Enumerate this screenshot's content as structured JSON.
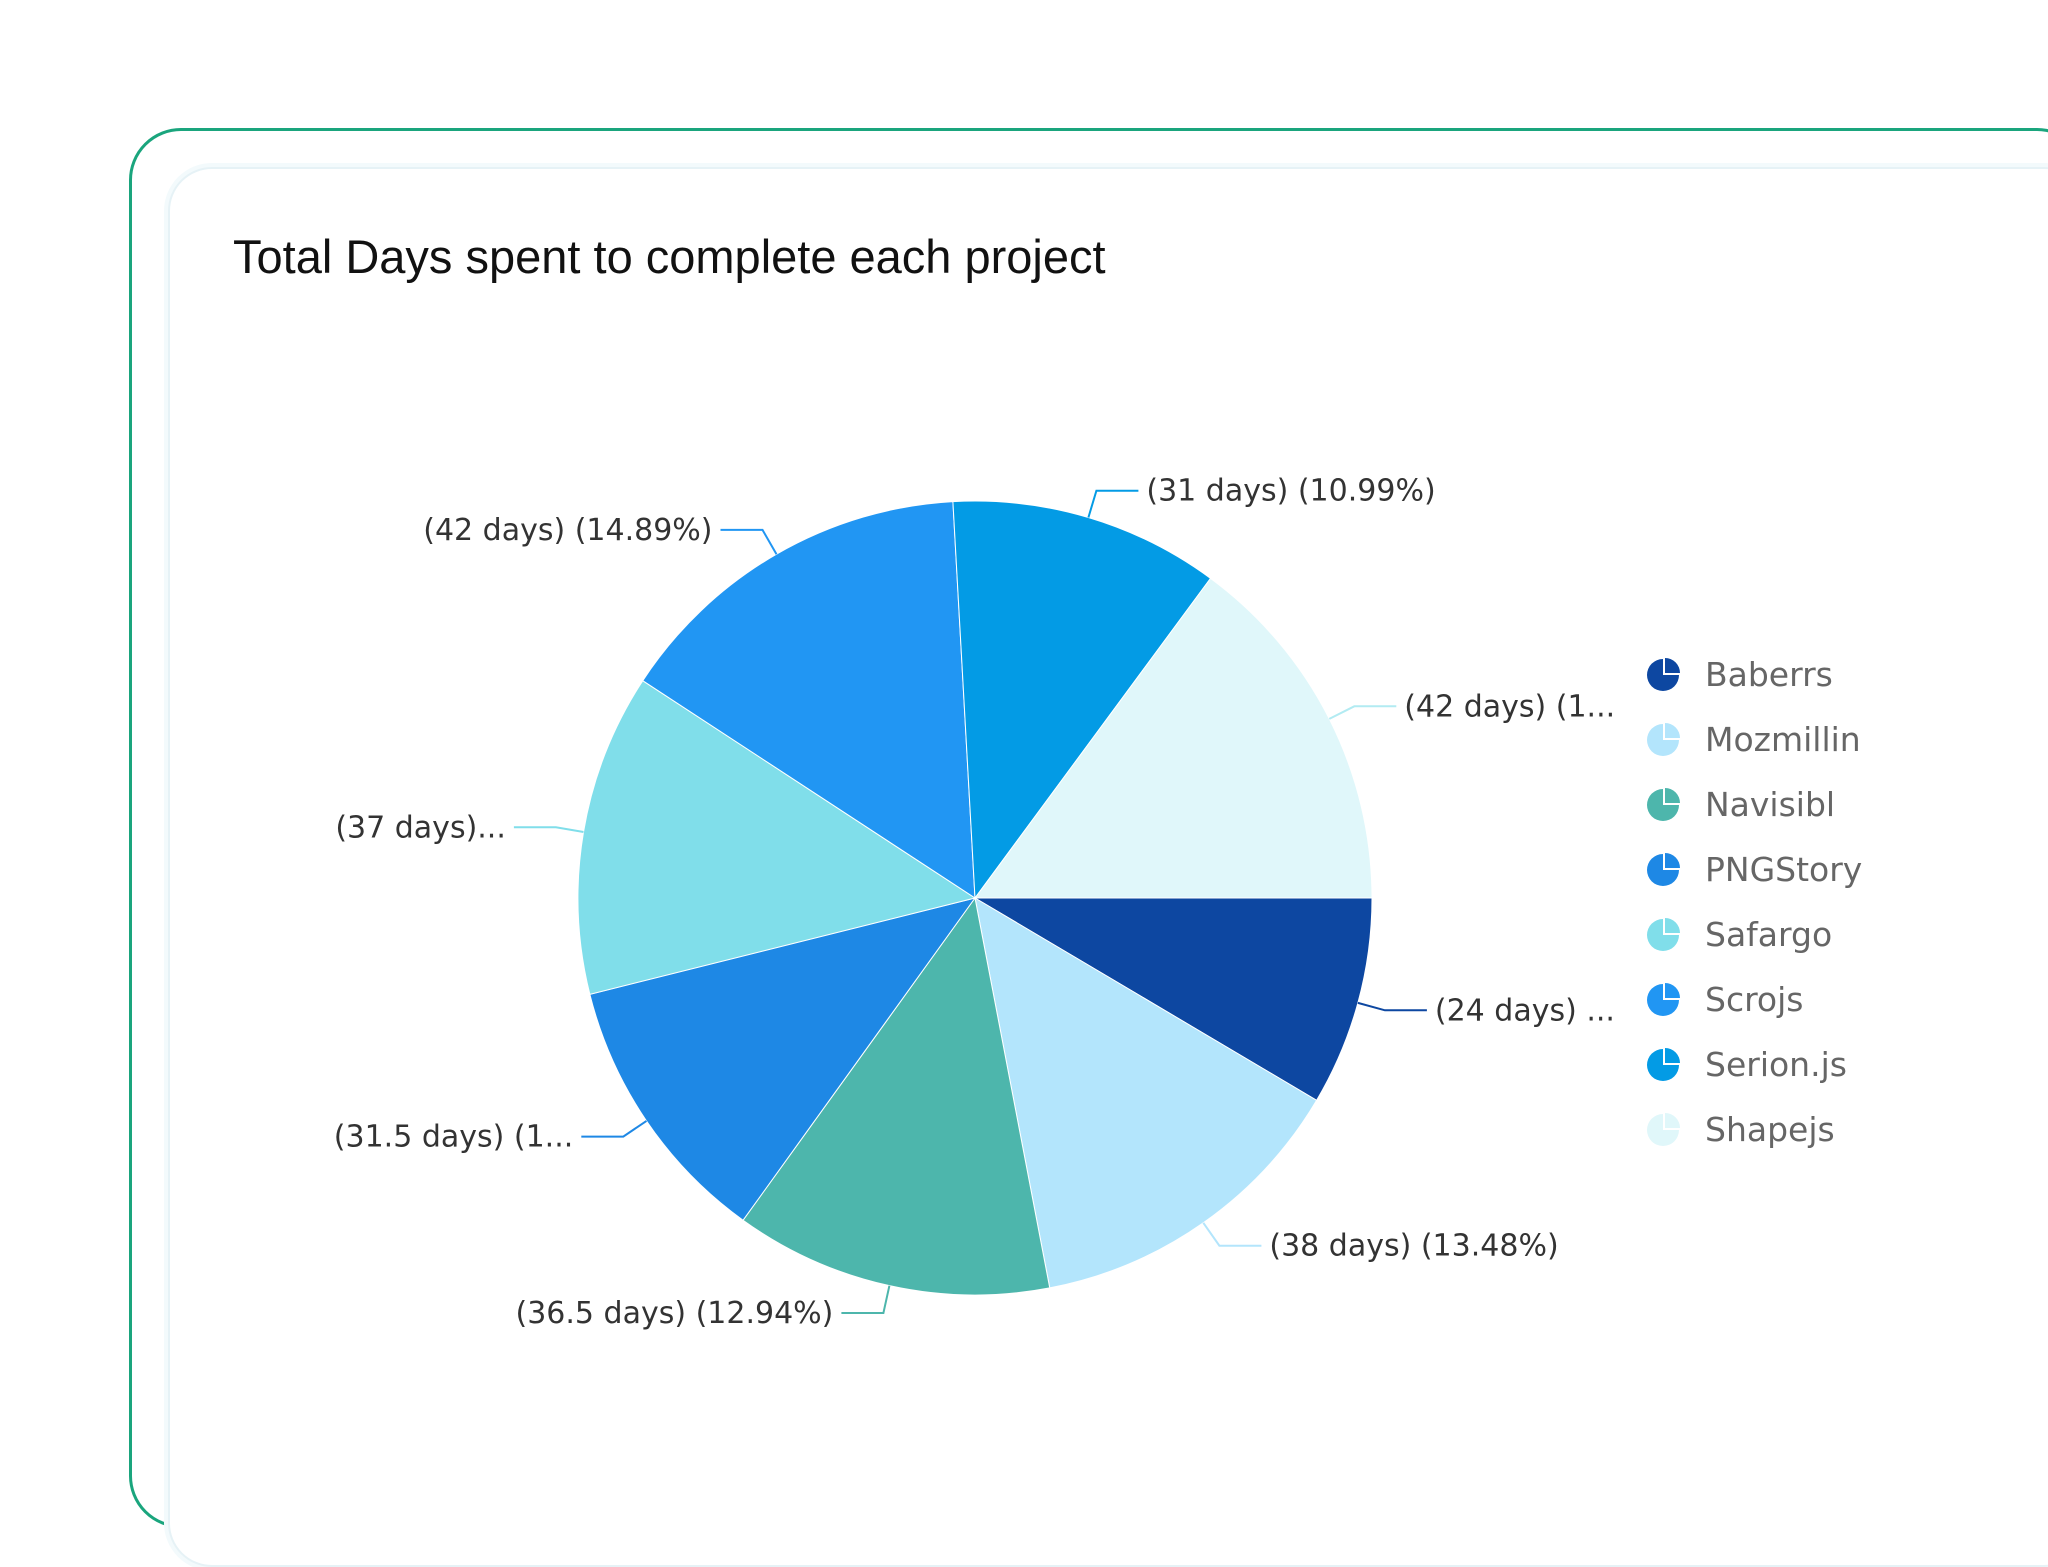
{
  "chart_data": {
    "type": "pie",
    "title": "Total Days spent to complete each project",
    "start_angle_deg": 0,
    "direction": "clockwise",
    "slices": [
      {
        "name": "Baberrs",
        "value": 24,
        "percent": 8.51,
        "color": "#0d47a1",
        "label": "(24 days) ..."
      },
      {
        "name": "Mozmillin",
        "value": 38,
        "percent": 13.48,
        "color": "#b3e5fc",
        "label": "(38 days) (13.48%)"
      },
      {
        "name": "Navisibl",
        "value": 36.5,
        "percent": 12.94,
        "color": "#4db6ac",
        "label": "(36.5 days) (12.94%)"
      },
      {
        "name": "PNGStory",
        "value": 31.5,
        "percent": 11.17,
        "color": "#1e88e5",
        "label": "(31.5 days) (1..."
      },
      {
        "name": "Safargo",
        "value": 37,
        "percent": 13.12,
        "color": "#80deea",
        "label": "(37 days)..."
      },
      {
        "name": "Scrojs",
        "value": 42,
        "percent": 14.89,
        "color": "#2196f3",
        "label": "(42 days) (14.89%)"
      },
      {
        "name": "Serion.js",
        "value": 31,
        "percent": 10.99,
        "color": "#039be5",
        "label": "(31 days) (10.99%)"
      },
      {
        "name": "Shapejs",
        "value": 42,
        "percent": 14.89,
        "color": "#e0f7fa",
        "label": "(42 days) (1..."
      }
    ],
    "legend_position": "right"
  }
}
